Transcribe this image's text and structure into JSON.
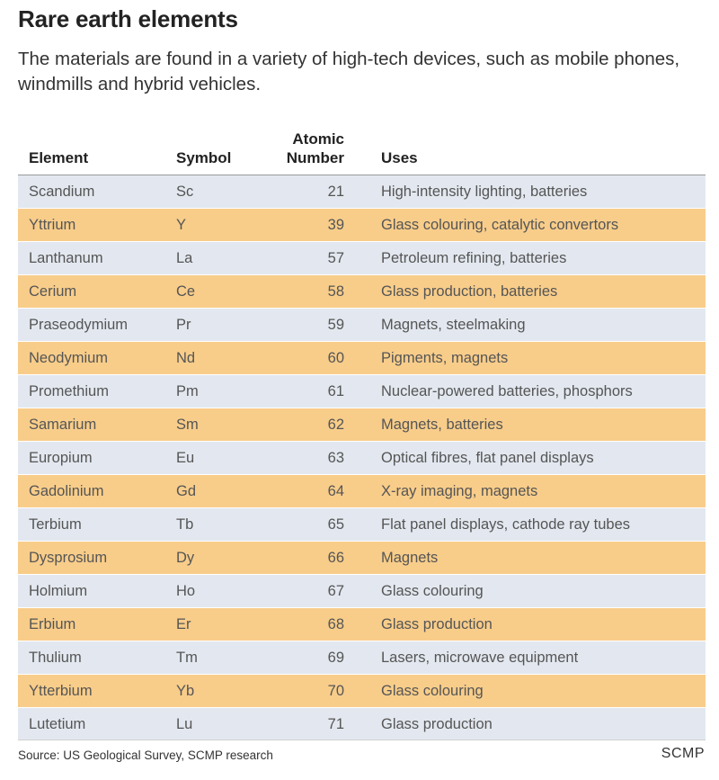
{
  "chart_data": {
    "type": "table",
    "title": "Rare earth elements",
    "subtitle": "The materials are found in a variety of high-tech devices, such as mobile phones, windmills and hybrid vehicles.",
    "columns": [
      "Element",
      "Symbol",
      "Atomic",
      "Number",
      "Uses"
    ],
    "rows": [
      {
        "element": "Scandium",
        "symbol": "Sc",
        "number": "21",
        "uses": "High-intensity lighting, batteries"
      },
      {
        "element": "Yttrium",
        "symbol": "Y",
        "number": "39",
        "uses": "Glass colouring, catalytic convertors"
      },
      {
        "element": "Lanthanum",
        "symbol": "La",
        "number": "57",
        "uses": "Petroleum refining, batteries"
      },
      {
        "element": "Cerium",
        "symbol": "Ce",
        "number": "58",
        "uses": "Glass production, batteries"
      },
      {
        "element": "Praseodymium",
        "symbol": "Pr",
        "number": "59",
        "uses": "Magnets, steelmaking"
      },
      {
        "element": "Neodymium",
        "symbol": "Nd",
        "number": "60",
        "uses": "Pigments, magnets"
      },
      {
        "element": "Promethium",
        "symbol": "Pm",
        "number": "61",
        "uses": "Nuclear-powered batteries, phosphors"
      },
      {
        "element": "Samarium",
        "symbol": "Sm",
        "number": "62",
        "uses": "Magnets, batteries"
      },
      {
        "element": "Europium",
        "symbol": "Eu",
        "number": "63",
        "uses": "Optical fibres, flat panel displays"
      },
      {
        "element": "Gadolinium",
        "symbol": "Gd",
        "number": "64",
        "uses": "X-ray imaging, magnets"
      },
      {
        "element": "Terbium",
        "symbol": "Tb",
        "number": "65",
        "uses": "Flat panel displays, cathode ray tubes"
      },
      {
        "element": "Dysprosium",
        "symbol": "Dy",
        "number": "66",
        "uses": "Magnets"
      },
      {
        "element": "Holmium",
        "symbol": "Ho",
        "number": "67",
        "uses": "Glass colouring"
      },
      {
        "element": "Erbium",
        "symbol": "Er",
        "number": "68",
        "uses": "Glass production"
      },
      {
        "element": "Thulium",
        "symbol": "Tm",
        "number": "69",
        "uses": "Lasers, microwave equipment"
      },
      {
        "element": "Ytterbium",
        "symbol": "Yb",
        "number": "70",
        "uses": "Glass colouring"
      },
      {
        "element": "Lutetium",
        "symbol": "Lu",
        "number": "71",
        "uses": "Glass production"
      }
    ],
    "source": "Source: US Geological Survey, SCMP research",
    "brand": "SCMP",
    "colors": {
      "row_odd": "#e3e8f0",
      "row_even": "#f8cd8a"
    }
  }
}
